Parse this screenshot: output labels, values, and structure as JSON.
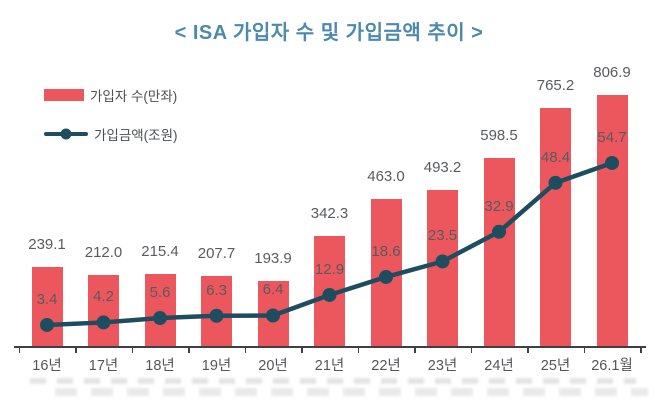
{
  "colors": {
    "title": "#4c8aad",
    "bar": "#ec575d",
    "line": "#1f4d60",
    "value_label": "#595b5e",
    "axis_label": "#55565a",
    "axis": "#3f4043"
  },
  "chart_data": {
    "type": "bar+line",
    "title": "< ISA 가입자 수 및 가입금액 추이 >",
    "categories": [
      "16년",
      "17년",
      "18년",
      "19년",
      "20년",
      "21년",
      "22년",
      "23년",
      "24년",
      "25년",
      "26.1월"
    ],
    "series": [
      {
        "name": "가입자 수(만좌)",
        "type": "bar",
        "color": "#ec575d",
        "values": [
          239.1,
          212.0,
          215.4,
          207.7,
          193.9,
          342.3,
          463.0,
          493.2,
          598.5,
          765.2,
          806.9
        ]
      },
      {
        "name": "가입금액(조원)",
        "type": "line",
        "color": "#1f4d60",
        "values": [
          3.4,
          4.2,
          5.6,
          6.3,
          6.4,
          12.9,
          18.6,
          23.5,
          32.9,
          48.4,
          54.7
        ]
      }
    ],
    "value_labels": true,
    "legend_position": "top-left",
    "grid": false,
    "xlabel": "",
    "ylabel": ""
  }
}
